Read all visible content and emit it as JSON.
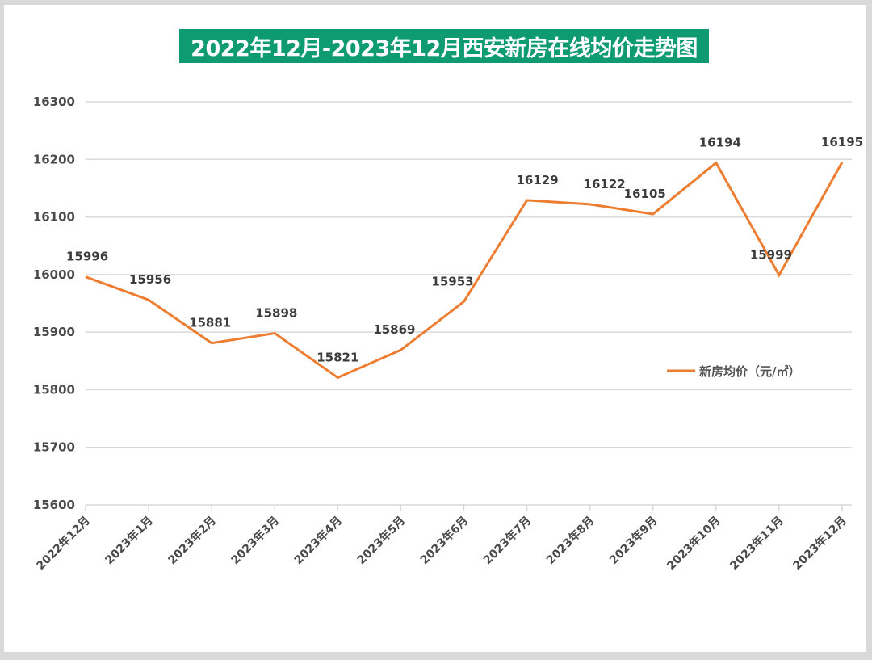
{
  "title": "2022年12月-2023年12月西安新房在线均价走势图",
  "colors": {
    "banner": "#0f9b72",
    "line": "#ed7d31",
    "grid": "#d9d9d9",
    "frame": "#d9d9d9"
  },
  "legend": {
    "label": "新房均价（元/㎡）"
  },
  "chart_data": {
    "type": "line",
    "title": "2022年12月-2023年12月西安新房在线均价走势图",
    "xlabel": "",
    "ylabel": "",
    "categories": [
      "2022年12月",
      "2023年1月",
      "2023年2月",
      "2023年3月",
      "2023年4月",
      "2023年5月",
      "2023年6月",
      "2023年7月",
      "2023年8月",
      "2023年9月",
      "2023年10月",
      "2023年11月",
      "2023年12月"
    ],
    "series": [
      {
        "name": "新房均价（元/㎡）",
        "values": [
          15996,
          15956,
          15881,
          15898,
          15821,
          15869,
          15953,
          16129,
          16122,
          16105,
          16194,
          15999,
          16195
        ]
      }
    ],
    "ylim": [
      15600,
      16300
    ],
    "yticks": [
      15600,
      15700,
      15800,
      15900,
      16000,
      16100,
      16200,
      16300
    ],
    "grid": true,
    "legend_position": "right-middle",
    "data_labels": true
  }
}
